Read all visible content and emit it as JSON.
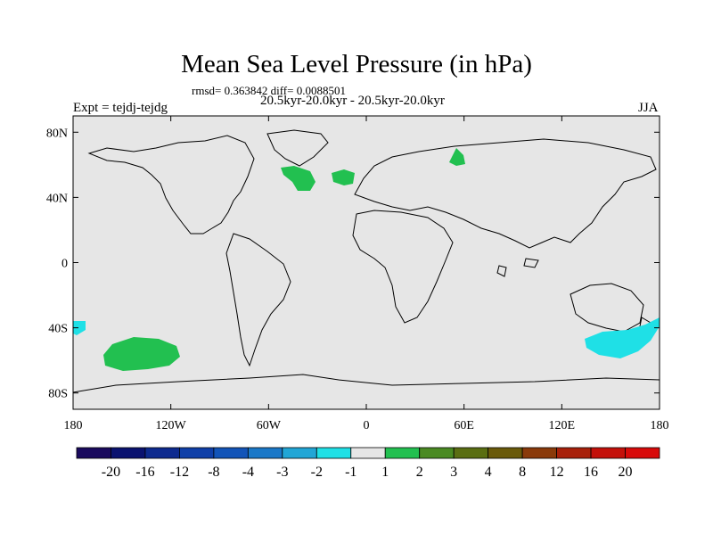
{
  "title": "Mean Sea Level Pressure (in hPa)",
  "stats": "rmsd= 0.363842 diff= 0.0088501",
  "period": "20.5kyr-20.0kyr - 20.5kyr-20.0kyr",
  "expt": "Expt = tejdj-tejdg",
  "season": "JJA",
  "axes": {
    "lat_labels": [
      "80N",
      "40N",
      "0",
      "40S",
      "80S"
    ],
    "lat_values": [
      80,
      40,
      0,
      -40,
      -80
    ],
    "lon_labels": [
      "180",
      "120W",
      "60W",
      "0",
      "60E",
      "120E",
      "180"
    ],
    "lon_values": [
      -180,
      -120,
      -60,
      0,
      60,
      120,
      180
    ],
    "lat_range": [
      -90,
      90
    ],
    "lon_range": [
      -180,
      180
    ]
  },
  "colorbar": {
    "labels": [
      "-20",
      "-16",
      "-12",
      "-8",
      "-4",
      "-3",
      "-2",
      "-1",
      "1",
      "2",
      "3",
      "4",
      "8",
      "12",
      "16",
      "20"
    ],
    "colors": [
      "#1a0a5e",
      "#0a1270",
      "#0d2a8f",
      "#0f3fa8",
      "#1254b8",
      "#1a78c8",
      "#21a6d6",
      "#1fe0e6",
      "#e6e6e6",
      "#22c050",
      "#4a8a22",
      "#5a6e12",
      "#6a5a0a",
      "#8a3a0a",
      "#a8200a",
      "#c4100a",
      "#d80a0a"
    ]
  },
  "colors": {
    "ocean_background": "#e6e6e6",
    "positive_anomaly": "#22c050",
    "negative_anomaly": "#1fe0e6"
  },
  "anomaly_regions": [
    {
      "name": "north-atlantic-west",
      "sign": "positive",
      "center_lon": -42,
      "center_lat": 55,
      "value": "1 to 2"
    },
    {
      "name": "north-atlantic-east",
      "sign": "positive",
      "center_lon": -15,
      "center_lat": 55,
      "value": "1 to 2"
    },
    {
      "name": "ural",
      "sign": "positive",
      "center_lon": 55,
      "center_lat": 67,
      "value": "1 to 2"
    },
    {
      "name": "south-pacific",
      "sign": "positive",
      "center_lon": -135,
      "center_lat": -52,
      "value": "1 to 2"
    },
    {
      "name": "south-of-australia",
      "sign": "negative",
      "center_lon": 155,
      "center_lat": -45,
      "value": "-2 to -1"
    },
    {
      "name": "south-pacific-west-edge",
      "sign": "negative",
      "center_lon": -178,
      "center_lat": -38,
      "value": "-2 to -1"
    }
  ]
}
